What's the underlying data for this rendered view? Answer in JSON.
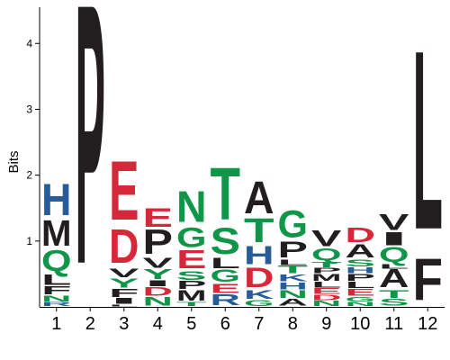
{
  "colors": {
    "green": "#109648",
    "blue": "#255c99",
    "red": "#d62839",
    "black": "#221e1f"
  },
  "letter_colors": {
    "A": "black",
    "C": "black",
    "D": "red",
    "E": "red",
    "F": "black",
    "G": "green",
    "H": "blue",
    "I": "black",
    "K": "blue",
    "L": "black",
    "M": "black",
    "N": "green",
    "P": "black",
    "Q": "green",
    "R": "blue",
    "S": "green",
    "T": "green",
    "V": "black",
    "W": "black",
    "Y": "green"
  },
  "chart_data": {
    "type": "sequence_logo",
    "ylabel": "Bits",
    "ylim": [
      0,
      4.55
    ],
    "yticks": [
      1,
      2,
      3,
      4
    ],
    "positions": [
      {
        "label": "1",
        "stack": [
          {
            "letter": "R",
            "height": 0.07
          },
          {
            "letter": "N",
            "height": 0.1
          },
          {
            "letter": "F",
            "height": 0.14
          },
          {
            "letter": "L",
            "height": 0.18
          },
          {
            "letter": "Q",
            "height": 0.37
          },
          {
            "letter": "M",
            "height": 0.45
          },
          {
            "letter": "H",
            "height": 0.55
          }
        ]
      },
      {
        "label": "2",
        "stack": [
          {
            "letter": "P",
            "height": 4.55
          }
        ]
      },
      {
        "label": "3",
        "stack": [
          {
            "letter": "L",
            "height": 0.03
          },
          {
            "letter": "I",
            "height": 0.1
          },
          {
            "letter": "F",
            "height": 0.14
          },
          {
            "letter": "Y",
            "height": 0.16
          },
          {
            "letter": "V",
            "height": 0.15
          },
          {
            "letter": "D",
            "height": 0.59
          },
          {
            "letter": "E",
            "height": 1.03
          }
        ]
      },
      {
        "label": "4",
        "stack": [
          {
            "letter": "N",
            "height": 0.15
          },
          {
            "letter": "D",
            "height": 0.15
          },
          {
            "letter": "I",
            "height": 0.1
          },
          {
            "letter": "Y",
            "height": 0.17
          },
          {
            "letter": "V",
            "height": 0.17
          },
          {
            "letter": "P",
            "height": 0.43
          },
          {
            "letter": "E",
            "height": 0.33
          }
        ]
      },
      {
        "label": "5",
        "stack": [
          {
            "letter": "T",
            "height": 0.07
          },
          {
            "letter": "M",
            "height": 0.18
          },
          {
            "letter": "P",
            "height": 0.14
          },
          {
            "letter": "S",
            "height": 0.15
          },
          {
            "letter": "E",
            "height": 0.32
          },
          {
            "letter": "G",
            "height": 0.35
          },
          {
            "letter": "N",
            "height": 0.54
          }
        ]
      },
      {
        "label": "6",
        "stack": [
          {
            "letter": "R",
            "height": 0.19
          },
          {
            "letter": "E",
            "height": 0.16
          },
          {
            "letter": "G",
            "height": 0.21
          },
          {
            "letter": "L",
            "height": 0.18
          },
          {
            "letter": "S",
            "height": 0.46
          },
          {
            "letter": "T",
            "height": 0.91
          }
        ]
      },
      {
        "label": "7",
        "stack": [
          {
            "letter": "G",
            "height": 0.1
          },
          {
            "letter": "K",
            "height": 0.15
          },
          {
            "letter": "D",
            "height": 0.35
          },
          {
            "letter": "H",
            "height": 0.32
          },
          {
            "letter": "T",
            "height": 0.42
          },
          {
            "letter": "A",
            "height": 0.56
          }
        ]
      },
      {
        "label": "8",
        "stack": [
          {
            "letter": "A",
            "height": 0.12
          },
          {
            "letter": "N",
            "height": 0.13
          },
          {
            "letter": "H",
            "height": 0.12
          },
          {
            "letter": "K",
            "height": 0.12
          },
          {
            "letter": "T",
            "height": 0.13
          },
          {
            "letter": "L",
            "height": 0.09
          },
          {
            "letter": "P",
            "height": 0.28
          },
          {
            "letter": "G",
            "height": 0.47
          }
        ]
      },
      {
        "label": "9",
        "stack": [
          {
            "letter": "N",
            "height": 0.09
          },
          {
            "letter": "D",
            "height": 0.09
          },
          {
            "letter": "E",
            "height": 0.1
          },
          {
            "letter": "L",
            "height": 0.1
          },
          {
            "letter": "M",
            "height": 0.12
          },
          {
            "letter": "P",
            "height": 0.09
          },
          {
            "letter": "T",
            "height": 0.09
          },
          {
            "letter": "Q",
            "height": 0.2
          },
          {
            "letter": "V",
            "height": 0.27
          }
        ]
      },
      {
        "label": "10",
        "stack": [
          {
            "letter": "N",
            "height": 0.07
          },
          {
            "letter": "G",
            "height": 0.08
          },
          {
            "letter": "E",
            "height": 0.12
          },
          {
            "letter": "L",
            "height": 0.11
          },
          {
            "letter": "P",
            "height": 0.12
          },
          {
            "letter": "H",
            "height": 0.1
          },
          {
            "letter": "S",
            "height": 0.12
          },
          {
            "letter": "A",
            "height": 0.23
          },
          {
            "letter": "D",
            "height": 0.25
          }
        ]
      },
      {
        "label": "11",
        "stack": [
          {
            "letter": "S",
            "height": 0.12
          },
          {
            "letter": "T",
            "height": 0.13
          },
          {
            "letter": "A",
            "height": 0.32
          },
          {
            "letter": "L",
            "height": 0.08
          },
          {
            "letter": "Q",
            "height": 0.25
          },
          {
            "letter": "I",
            "height": 0.23
          },
          {
            "letter": "V",
            "height": 0.27
          }
        ]
      },
      {
        "label": "12",
        "stack": [
          {
            "letter": "F",
            "height": 0.73
          },
          {
            "letter": "L",
            "height": 3.13
          }
        ]
      }
    ]
  }
}
